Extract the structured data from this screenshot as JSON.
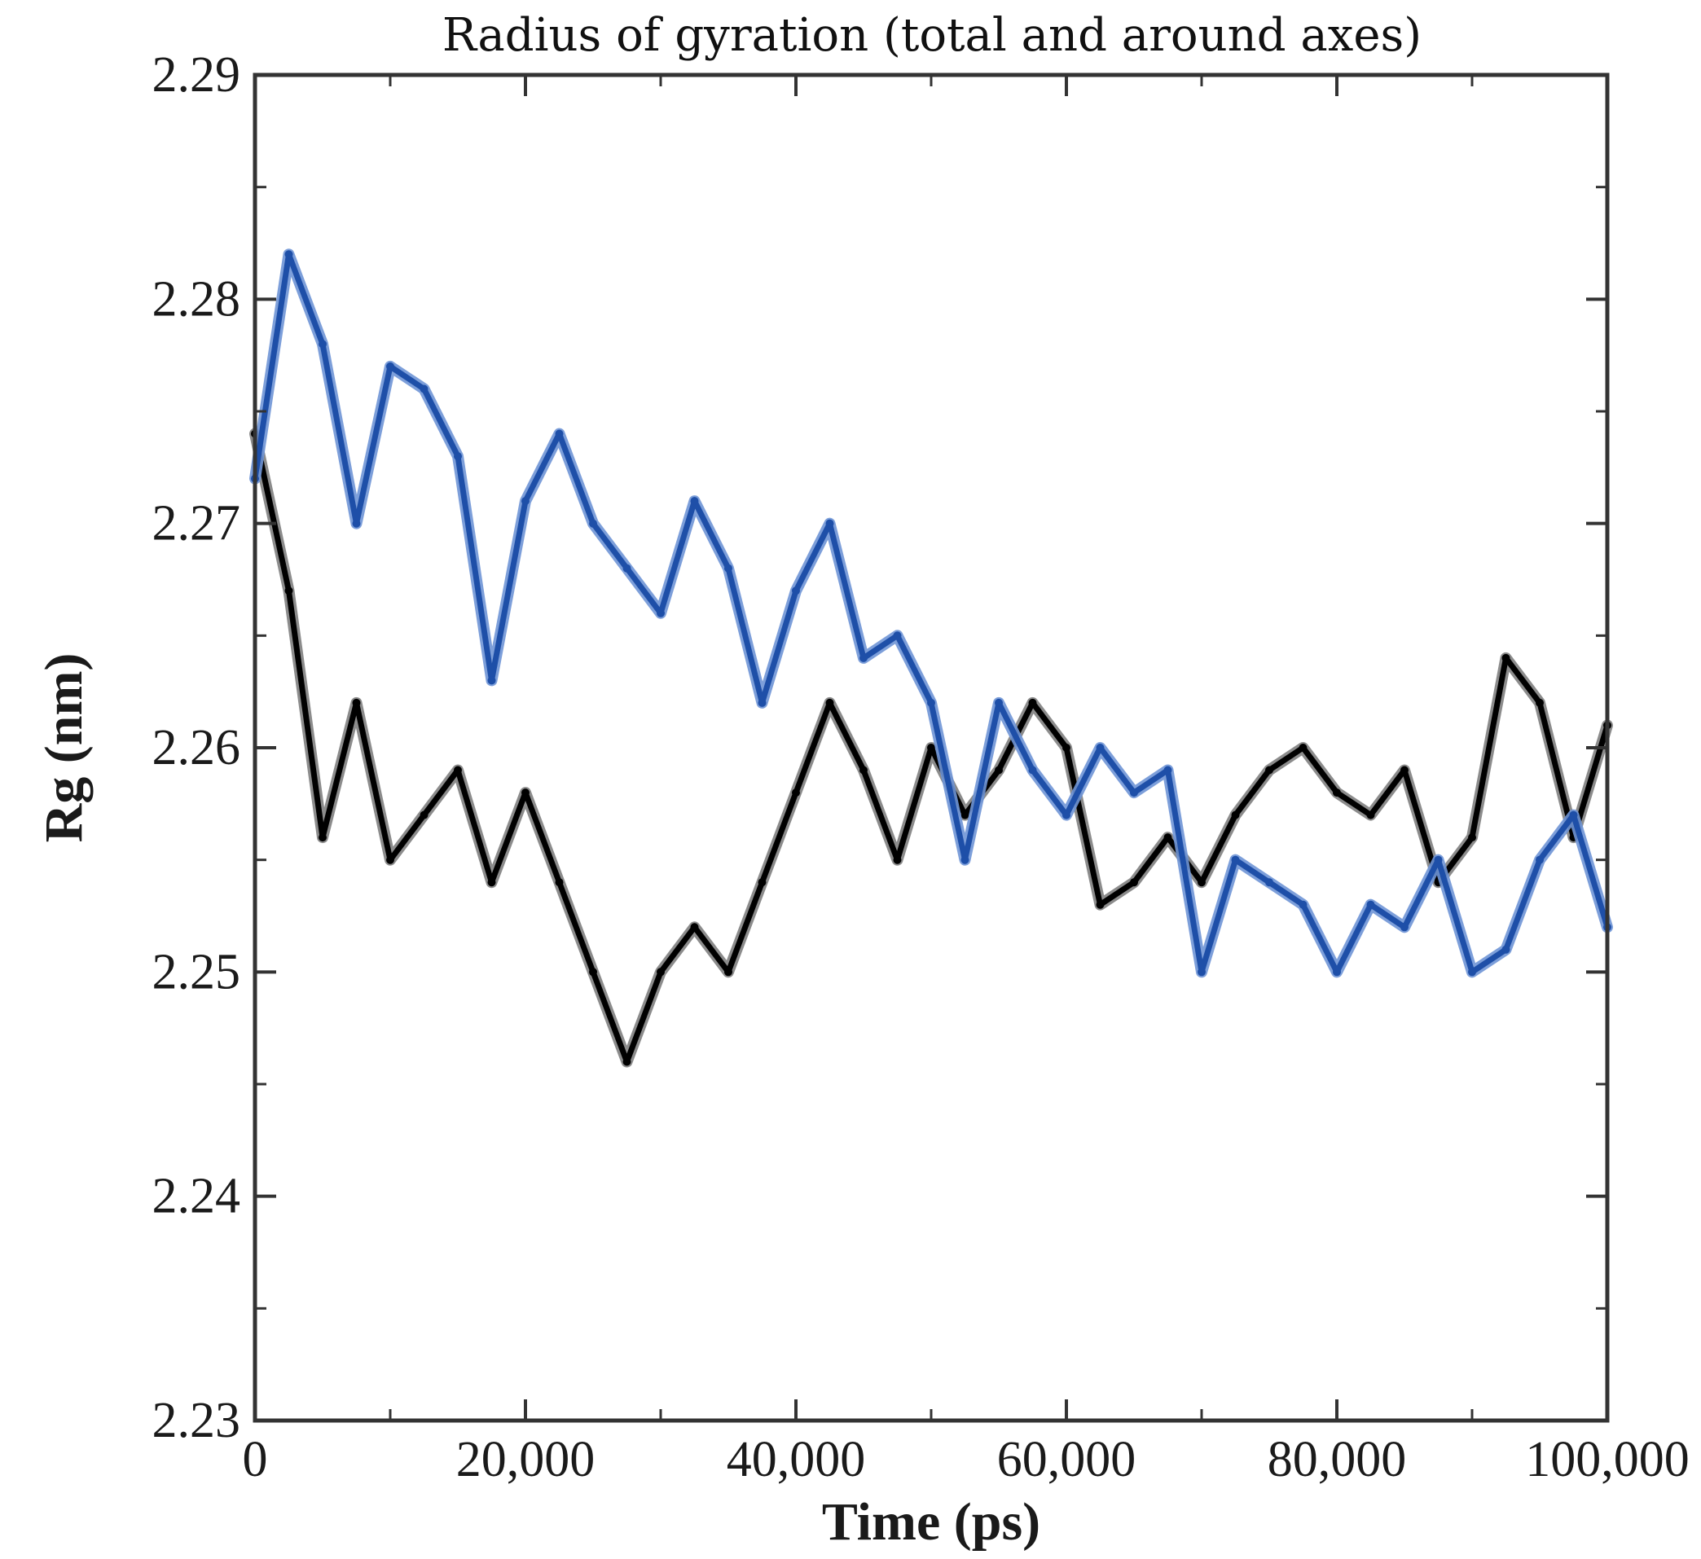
{
  "chart_data": {
    "type": "line",
    "title": "Radius of gyration (total and around axes)",
    "xlabel": "Time (ps)",
    "ylabel": "Rg (nm)",
    "xlim": [
      0,
      100000
    ],
    "ylim": [
      2.23,
      2.29
    ],
    "x_ticks": [
      0,
      20000,
      40000,
      60000,
      80000,
      100000
    ],
    "x_tick_labels": [
      "0",
      "20,000",
      "40,000",
      "60,000",
      "80,000",
      "100,000"
    ],
    "y_ticks": [
      2.23,
      2.24,
      2.25,
      2.26,
      2.27,
      2.28,
      2.29
    ],
    "y_tick_labels": [
      "2.23",
      "2.24",
      "2.25",
      "2.26",
      "2.27",
      "2.28",
      "2.29"
    ],
    "x_minor_step": 10000,
    "y_minor_step": 0.005,
    "grid": false,
    "series": [
      {
        "name": "Rg (black)",
        "color": "#000000",
        "outline_color": "#808080",
        "x": [
          0,
          2500,
          5000,
          7500,
          10000,
          12500,
          15000,
          17500,
          20000,
          22500,
          25000,
          27500,
          30000,
          32500,
          35000,
          37500,
          40000,
          42500,
          45000,
          47500,
          50000,
          52500,
          55000,
          57500,
          60000,
          62500,
          65000,
          67500,
          70000,
          72500,
          75000,
          77500,
          80000,
          82500,
          85000,
          87500,
          90000,
          92500,
          95000,
          97500,
          100000
        ],
        "values": [
          2.274,
          2.267,
          2.256,
          2.262,
          2.255,
          2.257,
          2.259,
          2.254,
          2.258,
          2.254,
          2.25,
          2.246,
          2.25,
          2.252,
          2.25,
          2.254,
          2.258,
          2.262,
          2.259,
          2.255,
          2.26,
          2.257,
          2.259,
          2.262,
          2.26,
          2.253,
          2.254,
          2.256,
          2.254,
          2.257,
          2.259,
          2.26,
          2.258,
          2.257,
          2.259,
          2.254,
          2.256,
          2.264,
          2.262,
          2.256,
          2.261
        ]
      },
      {
        "name": "Rg (blue)",
        "color": "#1e4fa8",
        "outline_color": "#6f95d6",
        "x": [
          0,
          2500,
          5000,
          7500,
          10000,
          12500,
          15000,
          17500,
          20000,
          22500,
          25000,
          27500,
          30000,
          32500,
          35000,
          37500,
          40000,
          42500,
          45000,
          47500,
          50000,
          52500,
          55000,
          57500,
          60000,
          62500,
          65000,
          67500,
          70000,
          72500,
          75000,
          77500,
          80000,
          82500,
          85000,
          87500,
          90000,
          92500,
          95000,
          97500,
          100000
        ],
        "values": [
          2.272,
          2.282,
          2.278,
          2.27,
          2.277,
          2.276,
          2.273,
          2.263,
          2.271,
          2.274,
          2.27,
          2.268,
          2.266,
          2.271,
          2.268,
          2.262,
          2.267,
          2.27,
          2.264,
          2.265,
          2.262,
          2.255,
          2.262,
          2.259,
          2.257,
          2.26,
          2.258,
          2.259,
          2.25,
          2.255,
          2.254,
          2.253,
          2.25,
          2.253,
          2.252,
          2.255,
          2.25,
          2.251,
          2.255,
          2.257,
          2.252
        ]
      }
    ]
  }
}
